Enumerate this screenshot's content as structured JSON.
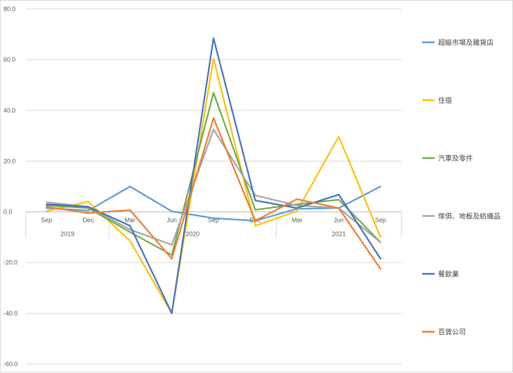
{
  "chart_data": {
    "type": "line",
    "title": "",
    "xlabel": "",
    "ylabel": "",
    "ylim": [
      -60,
      80
    ],
    "y_ticks": [
      "80.0",
      "60.0",
      "40.0",
      "20.0",
      "0.0",
      "-20.0",
      "-40.0",
      "-60.0"
    ],
    "y_tick_values": [
      80,
      60,
      40,
      20,
      0,
      -20,
      -40,
      -60
    ],
    "categories": [
      "Sep",
      "Dec",
      "Mar",
      "Jun",
      "Sep",
      "Dec",
      "Mar",
      "Jun",
      "Sep"
    ],
    "year_groups": [
      {
        "label": "2019",
        "start": 0,
        "end": 1
      },
      {
        "label": "2020",
        "start": 2,
        "end": 5
      },
      {
        "label": "2021",
        "start": 6,
        "end": 8
      }
    ],
    "grid": true,
    "legend_position": "right",
    "series": [
      {
        "name": "超級市場及雜貨店",
        "color": "#5b9bd5",
        "values": [
          1.5,
          0.5,
          10.0,
          0.2,
          -2.5,
          -3.5,
          1.2,
          1.5,
          10.0
        ]
      },
      {
        "name": "住宿",
        "color": "#ffc000",
        "values": [
          0.3,
          4.0,
          -11.5,
          -40.0,
          60.5,
          -5.5,
          0.3,
          29.7,
          -10.0
        ]
      },
      {
        "name": "汽車及零件",
        "color": "#70ad47",
        "values": [
          2.5,
          1.5,
          -8.0,
          -17.0,
          47.0,
          0.8,
          3.0,
          4.8,
          -12.0
        ]
      },
      {
        "name": "傢俱、地板及紡織品",
        "color": "#a5a5a5",
        "values": [
          3.8,
          2.0,
          -7.0,
          -13.0,
          32.5,
          6.5,
          2.5,
          1.5,
          -12.0
        ]
      },
      {
        "name": "餐飲業",
        "color": "#4472c4",
        "values": [
          3.0,
          2.0,
          -5.5,
          -40.0,
          68.5,
          4.5,
          1.5,
          6.8,
          -18.5
        ]
      },
      {
        "name": "百貨公司",
        "color": "#ed7d31",
        "values": [
          2.0,
          -0.5,
          0.7,
          -18.5,
          37.0,
          -3.5,
          5.0,
          1.5,
          -22.5
        ]
      }
    ]
  }
}
